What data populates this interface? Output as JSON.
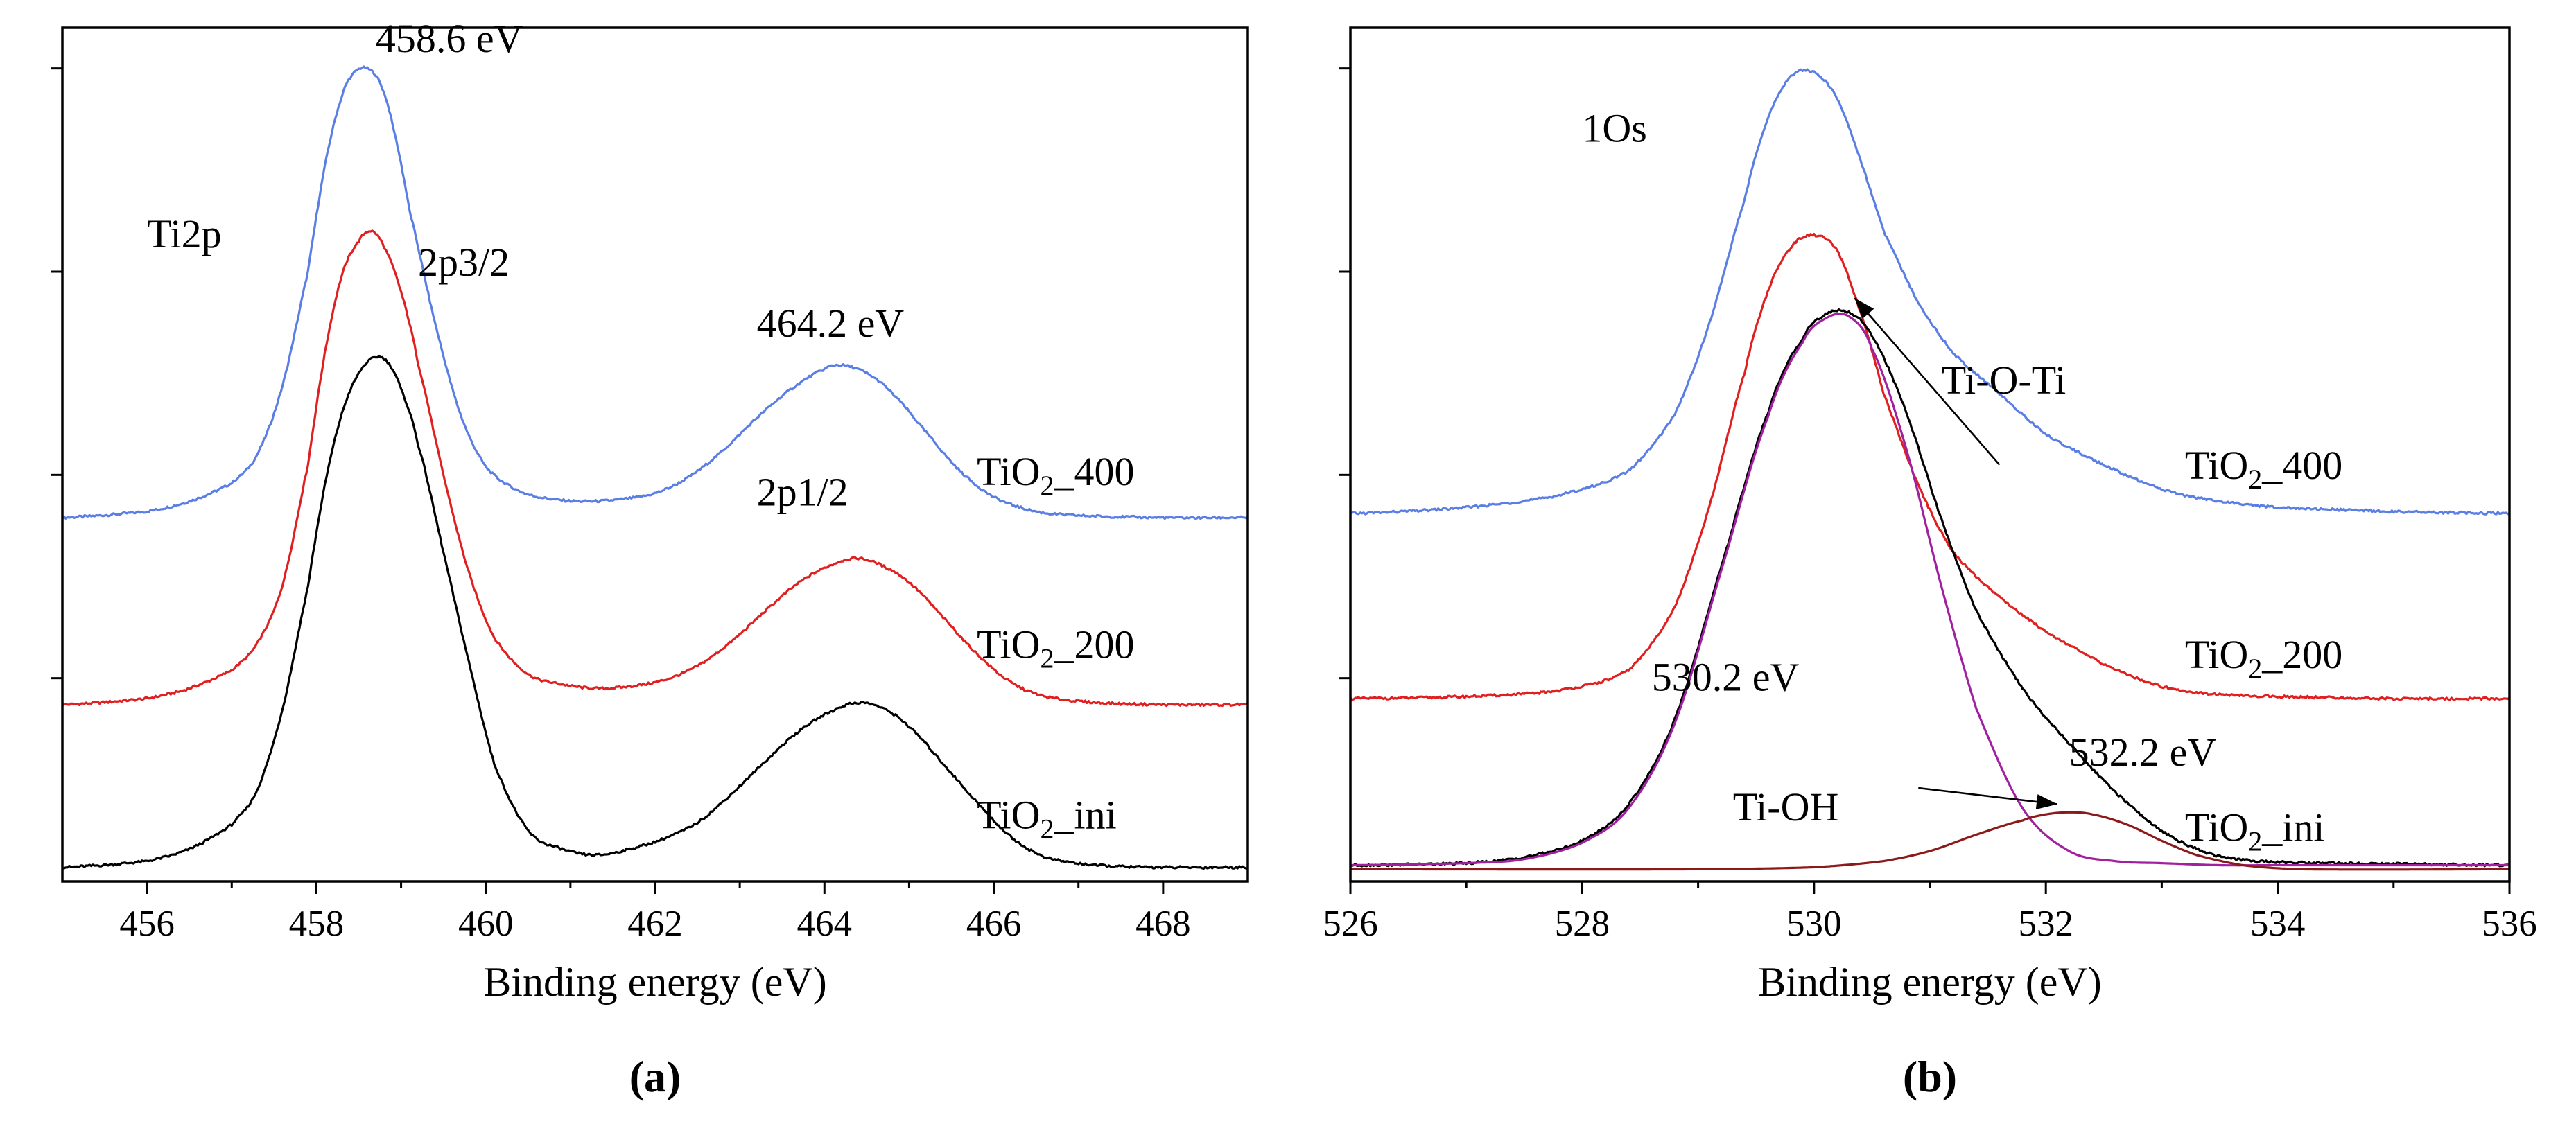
{
  "chart_data": [
    {
      "type": "line",
      "panel_label": "(a)",
      "xlabel": "Binding energy (eV)",
      "ylabel": "",
      "xlim": [
        455,
        469
      ],
      "ylim": [
        0,
        4.2
      ],
      "x_ticks": [
        456,
        458,
        460,
        462,
        464,
        466,
        468
      ],
      "y_ticks": [
        1,
        2,
        3,
        4
      ],
      "grid": false,
      "series": [
        {
          "name": "TiO2_400",
          "sub": "2",
          "label_parts": [
            "TiO",
            "2",
            "_400"
          ],
          "color": "#5b7ee5",
          "baseline": 1.79,
          "x": [
            455,
            456,
            456.5,
            457,
            457.3,
            457.6,
            457.9,
            458.1,
            458.3,
            458.45,
            458.6,
            458.75,
            458.9,
            459.1,
            459.4,
            459.7,
            460,
            460.4,
            460.8,
            461.2,
            461.6,
            462,
            462.4,
            462.8,
            463.2,
            463.6,
            464,
            464.2,
            464.5,
            464.8,
            465.2,
            465.6,
            466,
            466.5,
            467,
            468,
            469
          ],
          "y": [
            1.79,
            1.82,
            1.87,
            1.96,
            2.1,
            2.44,
            3.0,
            3.52,
            3.86,
            3.98,
            4.0,
            3.93,
            3.72,
            3.3,
            2.75,
            2.3,
            2.04,
            1.92,
            1.88,
            1.87,
            1.88,
            1.91,
            1.99,
            2.12,
            2.28,
            2.42,
            2.52,
            2.54,
            2.5,
            2.4,
            2.21,
            2.02,
            1.89,
            1.82,
            1.8,
            1.79,
            1.79
          ]
        },
        {
          "name": "TiO2_200",
          "sub": "2",
          "label_parts": [
            "TiO",
            "2",
            "_200"
          ],
          "color": "#e02020",
          "baseline": 0.87,
          "x": [
            455,
            456,
            456.5,
            457,
            457.3,
            457.6,
            457.9,
            458.1,
            458.3,
            458.5,
            458.65,
            458.8,
            459,
            459.2,
            459.5,
            459.8,
            460.1,
            460.5,
            460.9,
            461.3,
            461.7,
            462.1,
            462.5,
            462.9,
            463.3,
            463.7,
            464.1,
            464.4,
            464.7,
            465,
            465.4,
            465.8,
            466.2,
            466.6,
            467.2,
            468,
            469
          ],
          "y": [
            0.87,
            0.9,
            0.95,
            1.04,
            1.17,
            1.46,
            2.05,
            2.6,
            2.98,
            3.15,
            3.2,
            3.12,
            2.9,
            2.55,
            2.0,
            1.52,
            1.2,
            1.02,
            0.97,
            0.95,
            0.96,
            0.99,
            1.06,
            1.18,
            1.33,
            1.47,
            1.56,
            1.59,
            1.55,
            1.47,
            1.3,
            1.12,
            0.98,
            0.91,
            0.88,
            0.87,
            0.87
          ]
        },
        {
          "name": "TiO2_ini",
          "sub": "2",
          "label_parts": [
            "TiO",
            "2",
            "_ini"
          ],
          "color": "#000000",
          "baseline": 0.07,
          "x": [
            455,
            456,
            456.5,
            457,
            457.3,
            457.6,
            457.9,
            458.1,
            458.3,
            458.5,
            458.7,
            458.85,
            459,
            459.2,
            459.5,
            459.8,
            460.1,
            460.5,
            460.9,
            461.3,
            461.7,
            462.1,
            462.5,
            462.9,
            463.3,
            463.7,
            464.1,
            464.4,
            464.7,
            465,
            465.4,
            465.8,
            466.2,
            466.6,
            467.2,
            468,
            469
          ],
          "y": [
            0.07,
            0.1,
            0.16,
            0.28,
            0.45,
            0.85,
            1.45,
            1.95,
            2.3,
            2.5,
            2.58,
            2.55,
            2.42,
            2.15,
            1.62,
            1.08,
            0.58,
            0.25,
            0.16,
            0.13,
            0.16,
            0.21,
            0.29,
            0.43,
            0.59,
            0.74,
            0.84,
            0.88,
            0.85,
            0.76,
            0.58,
            0.39,
            0.22,
            0.12,
            0.08,
            0.07,
            0.07
          ]
        }
      ],
      "annotations": [
        {
          "text": "458.6 eV",
          "x": 458.7,
          "y": 4.08
        },
        {
          "text": "Ti2p",
          "x": 456.0,
          "y": 3.12
        },
        {
          "text": "2p3/2",
          "x": 459.2,
          "y": 2.98
        },
        {
          "text": "464.2 eV",
          "x": 463.2,
          "y": 2.68
        },
        {
          "text": "2p1/2",
          "x": 463.2,
          "y": 1.85
        }
      ],
      "series_label_positions": [
        {
          "series": "TiO2_400",
          "x": 465.8,
          "y": 1.95
        },
        {
          "series": "TiO2_200",
          "x": 465.8,
          "y": 1.1
        },
        {
          "series": "TiO2_ini",
          "x": 465.8,
          "y": 0.26
        }
      ]
    },
    {
      "type": "line",
      "panel_label": "(b)",
      "xlabel": "Binding energy (eV)",
      "ylabel": "",
      "xlim": [
        526,
        536
      ],
      "ylim": [
        0,
        4.2
      ],
      "x_ticks": [
        526,
        528,
        530,
        532,
        534,
        536
      ],
      "y_ticks": [
        1,
        2,
        3,
        4
      ],
      "grid": false,
      "series": [
        {
          "name": "TiO2_400",
          "label_parts": [
            "TiO",
            "2",
            "_400"
          ],
          "color": "#5b7ee5",
          "baseline": 1.81,
          "x": [
            526,
            527,
            527.8,
            528.4,
            528.8,
            529.1,
            529.4,
            529.6,
            529.8,
            530.0,
            530.2,
            530.4,
            530.6,
            530.9,
            531.2,
            531.6,
            532.0,
            532.5,
            533.0,
            533.5,
            534,
            535,
            536
          ],
          "y": [
            1.81,
            1.84,
            1.9,
            2.02,
            2.3,
            2.75,
            3.35,
            3.75,
            3.96,
            3.98,
            3.85,
            3.55,
            3.2,
            2.85,
            2.6,
            2.4,
            2.2,
            2.05,
            1.93,
            1.87,
            1.84,
            1.82,
            1.81
          ]
        },
        {
          "name": "TiO2_200",
          "label_parts": [
            "TiO",
            "2",
            "_200"
          ],
          "color": "#e02020",
          "baseline": 0.9,
          "x": [
            526,
            527,
            527.8,
            528.4,
            528.8,
            529.1,
            529.4,
            529.6,
            529.8,
            530.0,
            530.2,
            530.4,
            530.6,
            530.9,
            531.2,
            531.6,
            532.0,
            532.5,
            533.0,
            533.5,
            534,
            535,
            536
          ],
          "y": [
            0.9,
            0.91,
            0.94,
            1.04,
            1.35,
            1.85,
            2.5,
            2.9,
            3.12,
            3.18,
            3.1,
            2.8,
            2.4,
            1.95,
            1.62,
            1.4,
            1.23,
            1.07,
            0.96,
            0.92,
            0.91,
            0.9,
            0.9
          ]
        },
        {
          "name": "TiO2_ini",
          "label_parts": [
            "TiO",
            "2",
            "_ini"
          ],
          "color": "#000000",
          "baseline": 0.08,
          "x": [
            526,
            527,
            527.5,
            528,
            528.4,
            528.8,
            529.2,
            529.6,
            529.9,
            530.1,
            530.3,
            530.5,
            530.8,
            531.1,
            531.4,
            531.8,
            532.2,
            532.6,
            533.0,
            533.4,
            533.8,
            534.5,
            536
          ],
          "y": [
            0.08,
            0.09,
            0.12,
            0.2,
            0.38,
            0.8,
            1.55,
            2.3,
            2.67,
            2.79,
            2.8,
            2.68,
            2.3,
            1.78,
            1.33,
            0.95,
            0.68,
            0.44,
            0.25,
            0.14,
            0.1,
            0.09,
            0.08
          ]
        },
        {
          "name": "Ti-O-Ti",
          "color": "#a020a0",
          "baseline": 0.08,
          "x": [
            526,
            527,
            527.5,
            528,
            528.4,
            528.8,
            529.2,
            529.6,
            529.9,
            530.1,
            530.3,
            530.5,
            530.8,
            531.1,
            531.4,
            531.8,
            532.2,
            532.6,
            533.0,
            533.5,
            534,
            535,
            536
          ],
          "y": [
            0.08,
            0.09,
            0.11,
            0.19,
            0.36,
            0.78,
            1.53,
            2.28,
            2.65,
            2.77,
            2.78,
            2.62,
            2.12,
            1.45,
            0.85,
            0.36,
            0.15,
            0.1,
            0.09,
            0.08,
            0.08,
            0.08,
            0.08
          ]
        },
        {
          "name": "Ti-OH",
          "color": "#8b1a1a",
          "baseline": 0.06,
          "x": [
            526,
            529,
            530,
            530.6,
            531,
            531.4,
            531.8,
            532.0,
            532.2,
            532.4,
            532.7,
            533.0,
            533.3,
            533.7,
            534.2,
            536
          ],
          "y": [
            0.06,
            0.06,
            0.07,
            0.1,
            0.15,
            0.23,
            0.3,
            0.33,
            0.34,
            0.33,
            0.28,
            0.2,
            0.13,
            0.08,
            0.06,
            0.06
          ]
        }
      ],
      "annotations": [
        {
          "text": "1Os",
          "x": 528.0,
          "y": 3.64
        },
        {
          "text": "Ti-O-Ti",
          "x": 531.1,
          "y": 2.4
        },
        {
          "text": "530.2 eV",
          "x": 528.6,
          "y": 0.94
        },
        {
          "text": "532.2 eV",
          "x": 532.2,
          "y": 0.57
        },
        {
          "text": "Ti-OH",
          "x": 529.3,
          "y": 0.3
        }
      ],
      "arrows": [
        {
          "from_x": 531.6,
          "from_y": 2.05,
          "to_x": 530.35,
          "to_y": 2.87
        },
        {
          "from_x": 530.9,
          "from_y": 0.46,
          "to_x": 532.1,
          "to_y": 0.38
        }
      ],
      "series_label_positions": [
        {
          "series": "TiO2_400",
          "x": 533.2,
          "y": 1.98
        },
        {
          "series": "TiO2_200",
          "x": 533.2,
          "y": 1.05
        },
        {
          "series": "TiO2_ini",
          "x": 533.2,
          "y": 0.2
        }
      ]
    }
  ]
}
